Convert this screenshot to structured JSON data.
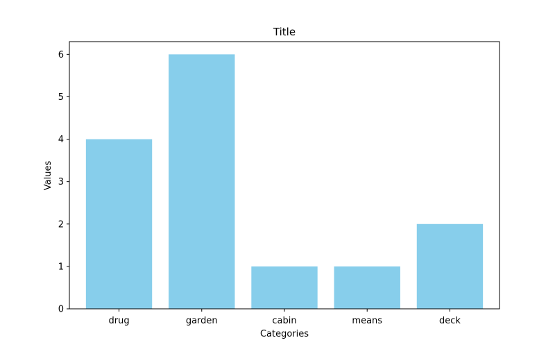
{
  "chart_data": {
    "type": "bar",
    "title": "Title",
    "xlabel": "Categories",
    "ylabel": "Values",
    "categories": [
      "drug",
      "garden",
      "cabin",
      "means",
      "deck"
    ],
    "values": [
      4,
      6,
      1,
      1,
      2
    ],
    "ylim": [
      0,
      6.3
    ],
    "yticks": [
      0,
      1,
      2,
      3,
      4,
      5,
      6
    ],
    "bar_color": "#87ceeb",
    "grid": false,
    "legend": "none"
  }
}
